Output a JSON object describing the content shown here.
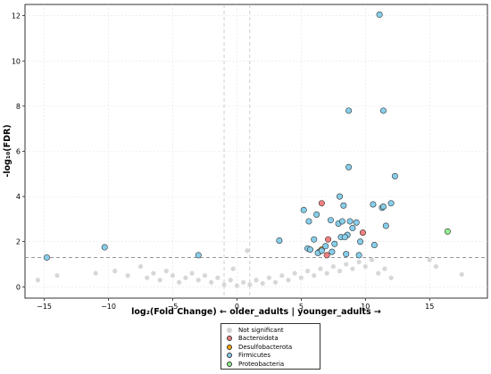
{
  "chart_data": {
    "type": "scatter",
    "title": "",
    "xlabel": "log₂(Fold Change) ← older_adults | younger_adults →",
    "ylabel": "-log₁₀(FDR)",
    "xlim": [
      -16.5,
      19.5
    ],
    "ylim": [
      -0.5,
      12.5
    ],
    "xticks": [
      -15,
      -10,
      -5,
      0,
      5,
      10,
      15
    ],
    "yticks": [
      0,
      2,
      4,
      6,
      8,
      10,
      12
    ],
    "grid": true,
    "threshold_lines": {
      "fdr_y": 1.3,
      "fc_x": [
        -1,
        1
      ]
    },
    "legend_position": "bottom-center",
    "colors": {
      "Not significant": "#d3d3d3",
      "Bacteroidota": "#f08080",
      "Desulfobacterota": "#ffa500",
      "Firmicutes": "#87ceeb",
      "Proteobacteria": "#90ee90"
    },
    "series": [
      {
        "name": "Not significant",
        "points": [
          [
            -15.5,
            0.3
          ],
          [
            -14,
            0.5
          ],
          [
            -11,
            0.6
          ],
          [
            -9.5,
            0.7
          ],
          [
            -8.5,
            0.5
          ],
          [
            -7.5,
            0.9
          ],
          [
            -7,
            0.4
          ],
          [
            -6.5,
            0.6
          ],
          [
            -6,
            0.3
          ],
          [
            -5.5,
            0.7
          ],
          [
            -5,
            0.5
          ],
          [
            -4.5,
            0.2
          ],
          [
            -4,
            0.4
          ],
          [
            -3.5,
            0.6
          ],
          [
            -3,
            0.3
          ],
          [
            -2.5,
            0.5
          ],
          [
            -2,
            0.2
          ],
          [
            -1.5,
            0.4
          ],
          [
            -1,
            0.1
          ],
          [
            -0.5,
            0.3
          ],
          [
            0,
            0.05
          ],
          [
            0.5,
            0.2
          ],
          [
            1,
            0.1
          ],
          [
            1.5,
            0.3
          ],
          [
            2,
            0.15
          ],
          [
            2.5,
            0.4
          ],
          [
            3,
            0.2
          ],
          [
            3.5,
            0.5
          ],
          [
            4,
            0.3
          ],
          [
            4.5,
            0.6
          ],
          [
            5,
            0.4
          ],
          [
            5.5,
            0.7
          ],
          [
            6,
            0.5
          ],
          [
            6.5,
            0.8
          ],
          [
            7,
            0.6
          ],
          [
            7.5,
            0.9
          ],
          [
            8,
            0.7
          ],
          [
            8.5,
            1.0
          ],
          [
            9,
            0.8
          ],
          [
            9.5,
            1.1
          ],
          [
            10,
            0.9
          ],
          [
            10.5,
            1.2
          ],
          [
            11,
            0.6
          ],
          [
            11.5,
            0.8
          ],
          [
            12,
            0.4
          ],
          [
            15,
            1.2
          ],
          [
            15.5,
            0.9
          ],
          [
            17.5,
            0.55
          ],
          [
            0.8,
            1.6
          ],
          [
            -0.3,
            0.8
          ]
        ]
      },
      {
        "name": "Bacteroidota",
        "points": [
          [
            6.6,
            3.7
          ],
          [
            7.1,
            2.1
          ],
          [
            9.8,
            2.4
          ],
          [
            7.0,
            1.4
          ]
        ]
      },
      {
        "name": "Desulfobacterota",
        "points": [
          [
            6.4,
            1.55
          ],
          [
            6.6,
            1.65
          ]
        ]
      },
      {
        "name": "Firmicutes",
        "points": [
          [
            -14.8,
            1.3
          ],
          [
            -10.3,
            1.75
          ],
          [
            -3.0,
            1.4
          ],
          [
            3.3,
            2.05
          ],
          [
            5.2,
            3.4
          ],
          [
            5.6,
            2.9
          ],
          [
            6.2,
            3.2
          ],
          [
            5.5,
            1.7
          ],
          [
            5.7,
            1.65
          ],
          [
            6.0,
            2.1
          ],
          [
            6.3,
            1.5
          ],
          [
            6.6,
            1.6
          ],
          [
            6.9,
            1.8
          ],
          [
            7.3,
            2.95
          ],
          [
            7.6,
            1.9
          ],
          [
            7.9,
            2.8
          ],
          [
            8.0,
            4.0
          ],
          [
            8.2,
            2.9
          ],
          [
            8.3,
            3.6
          ],
          [
            8.1,
            2.2
          ],
          [
            8.6,
            2.3
          ],
          [
            8.8,
            2.9
          ],
          [
            9.0,
            2.6
          ],
          [
            9.3,
            2.85
          ],
          [
            9.5,
            1.4
          ],
          [
            9.6,
            2.0
          ],
          [
            8.4,
            2.2
          ],
          [
            8.7,
            5.3
          ],
          [
            8.7,
            7.8
          ],
          [
            11.1,
            12.05
          ],
          [
            11.4,
            7.8
          ],
          [
            12.3,
            4.9
          ],
          [
            12.0,
            3.7
          ],
          [
            11.3,
            3.5
          ],
          [
            10.6,
            3.65
          ],
          [
            10.7,
            1.85
          ],
          [
            11.6,
            2.7
          ],
          [
            11.4,
            3.55
          ],
          [
            7.4,
            1.55
          ],
          [
            8.5,
            1.45
          ]
        ]
      },
      {
        "name": "Proteobacteria",
        "points": [
          [
            16.4,
            2.45
          ]
        ]
      }
    ]
  }
}
